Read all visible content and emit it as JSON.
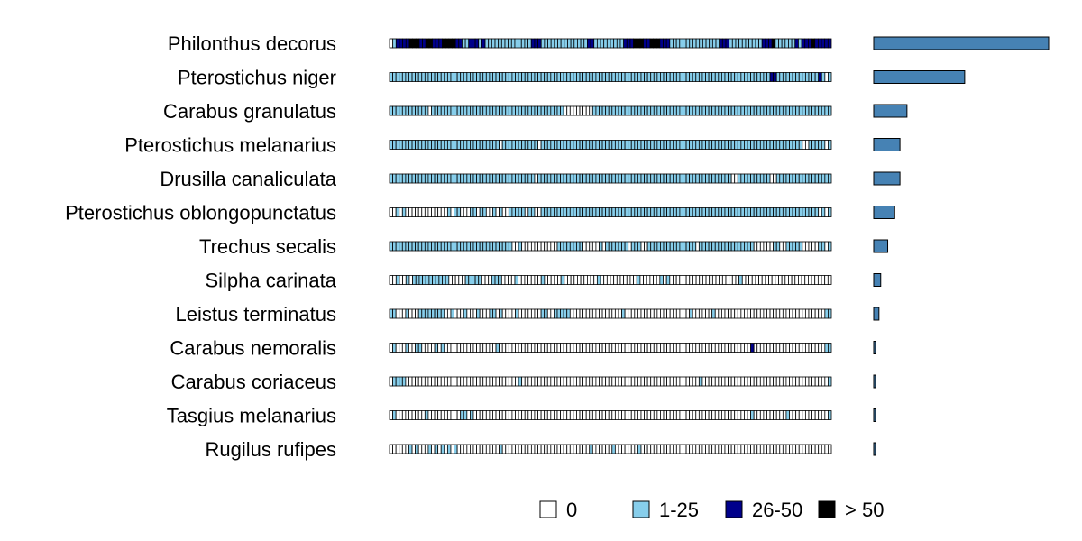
{
  "chart_data": {
    "type": "heatmap",
    "title": "",
    "xlabel": "",
    "ylabel": "",
    "colors": {
      "0": "#ffffff",
      "1-25": "#87ceeb",
      "26-50": "#00008b",
      "> 50": "#000000",
      "total_bar": "#4682b4",
      "stroke": "#000000"
    },
    "legend": {
      "placement": "bottom",
      "categories": [
        "0",
        "1-25",
        "26-50",
        "> 50"
      ]
    },
    "species": [
      {
        "name": "Philonthus decorus",
        "total": 100,
        "pattern": "01222233322332223333221122212111111111111112221111111111111122111111111222333223332221111111111111112221111111111222311111121222322222"
      },
      {
        "name": "Pterostichus niger",
        "total": 52,
        "pattern": "11111111111111111111111111111111111111111111111111111111111111111111111111111111111111111111111111111111111111111111112211111111111112101"
      },
      {
        "name": "Carabus granulatus",
        "total": 19,
        "pattern": "11111111111101111111111111111111111111111111111111111100000000011111111111111111111111111111111111111111111111111111111111111111111111111"
      },
      {
        "name": "Pterostichus melanarius",
        "total": 15,
        "pattern": "11111111111111111111111111111111110111111111110111111111111111111111111111111111111111111111111111111111111111111111111111111111001111101"
      },
      {
        "name": "Drusilla canaliculata",
        "total": 15,
        "pattern": "11111111111111111111111111111111111111111111101111111111111111111111111111111111111111111111111111111111110011111111110011111111111111111"
      },
      {
        "name": "Pterostichus oblongopunctatus",
        "total": 12,
        "pattern": "00101000000000000010110001101100101001111101100111111111111111111111111111111111111111111111111111111111111111111111111111111111111110101"
      },
      {
        "name": "Trechus secalis",
        "total": 8,
        "pattern": "11111111111111111111111111111111111111001000000000001111111100000101111111011100111111111111111011111111111111111000000110011111000001101"
      },
      {
        "name": "Silpha carinata",
        "total": 4,
        "pattern": "00100101111111111100000111110001110000100000001000001000000000010000000000010000001010000000000000000000001000000000000000000000000000"
      },
      {
        "name": "Leistus terminatus",
        "total": 3,
        "pattern": "11000100011111111001000100010001101000010000000110011111000000000000000010000000000000000000010000001000000000000000000000000000000000011"
      },
      {
        "name": "Carabus nemoralis",
        "total": 1,
        "pattern": "01000100110000101000000000000000010000000000000000000000000000000000000000000000000000000000000000000000000000002000000000000000000000011"
      },
      {
        "name": "Carabus coriaceus",
        "total": 1,
        "pattern": "01111000000000000000000000000000000000001000000000000000000000000000000000000000000000000000000010000000000000000000000000000000000000001"
      },
      {
        "name": "Tasgius melanarius",
        "total": 1,
        "pattern": "01000000000100000000001101000000000000000000000000000000000000000000000000000000000000000000000000000000000000001000000000010000000000001"
      },
      {
        "name": "Rugilus rufipes",
        "total": 1,
        "pattern": "00000010100010101010100000000000001000000000000000000000000000100000010000000100000000000000000000000000000000000000000000000000000000000"
      }
    ]
  }
}
